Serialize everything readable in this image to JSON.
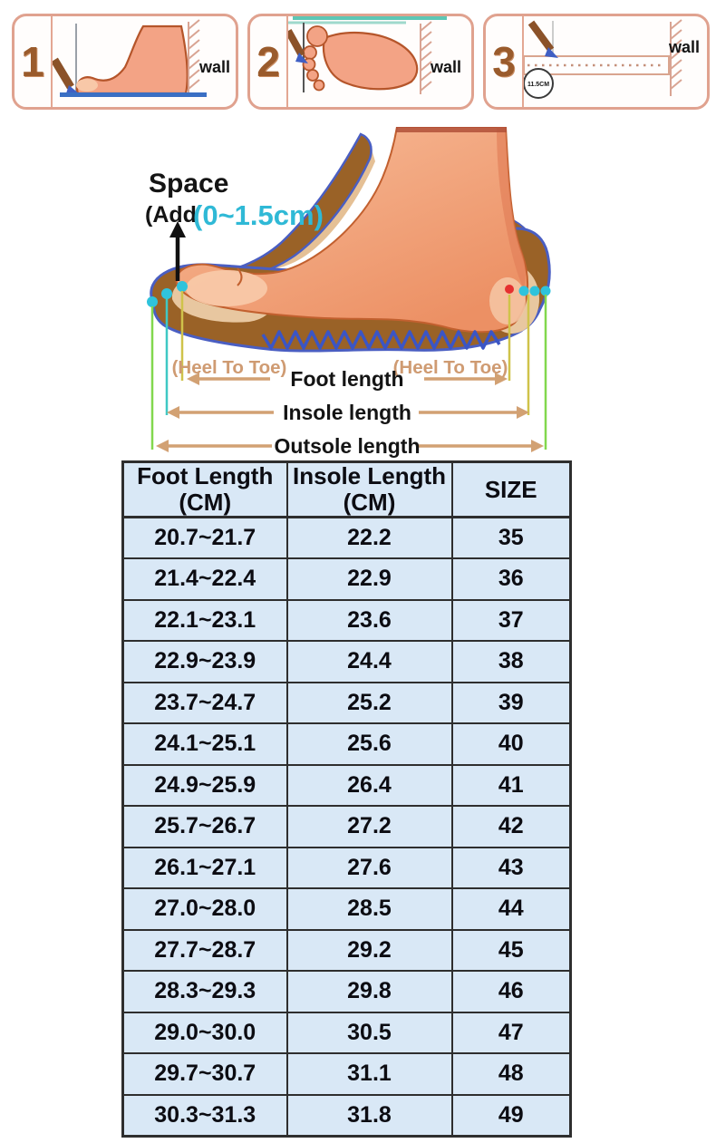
{
  "measure_steps": [
    {
      "number": "1",
      "wall_label": "wall"
    },
    {
      "number": "2",
      "wall_label": "wall"
    },
    {
      "number": "3",
      "wall_label": "wall",
      "ruler_label": "11.5CM"
    }
  ],
  "diagram": {
    "space_label": "Space",
    "add_prefix": "(Add",
    "add_range": "(0~1.5cm)",
    "heel_to_toe_left": "(Heel To Toe)",
    "heel_to_toe_right": "(Heel To Toe)",
    "foot_length_label": "Foot length",
    "insole_length_label": "Insole length",
    "outsole_length_label": "Outsole length"
  },
  "size_table": {
    "columns": [
      {
        "title": "Foot Length",
        "unit": "(CM)"
      },
      {
        "title": "Insole Length",
        "unit": "(CM)"
      },
      {
        "title": "SIZE",
        "unit": ""
      }
    ],
    "rows": [
      {
        "foot_length": "20.7~21.7",
        "insole_length": "22.2",
        "size": "35"
      },
      {
        "foot_length": "21.4~22.4",
        "insole_length": "22.9",
        "size": "36"
      },
      {
        "foot_length": "22.1~23.1",
        "insole_length": "23.6",
        "size": "37"
      },
      {
        "foot_length": "22.9~23.9",
        "insole_length": "24.4",
        "size": "38"
      },
      {
        "foot_length": "23.7~24.7",
        "insole_length": "25.2",
        "size": "39"
      },
      {
        "foot_length": "24.1~25.1",
        "insole_length": "25.6",
        "size": "40"
      },
      {
        "foot_length": "24.9~25.9",
        "insole_length": "26.4",
        "size": "41"
      },
      {
        "foot_length": "25.7~26.7",
        "insole_length": "27.2",
        "size": "42"
      },
      {
        "foot_length": "26.1~27.1",
        "insole_length": "27.6",
        "size": "43"
      },
      {
        "foot_length": "27.0~28.0",
        "insole_length": "28.5",
        "size": "44"
      },
      {
        "foot_length": "27.7~28.7",
        "insole_length": "29.2",
        "size": "45"
      },
      {
        "foot_length": "28.3~29.3",
        "insole_length": "29.8",
        "size": "46"
      },
      {
        "foot_length": "29.0~30.0",
        "insole_length": "30.5",
        "size": "47"
      },
      {
        "foot_length": "29.7~30.7",
        "insole_length": "31.1",
        "size": "48"
      },
      {
        "foot_length": "30.3~31.3",
        "insole_length": "31.8",
        "size": "49"
      }
    ]
  },
  "colors": {
    "table_background": "#d9e8f6",
    "table_border": "#2e2e2e",
    "panel_border": "#e0a28f",
    "step_number_brown": "#9a5b2c",
    "skin": "#f3a385",
    "shoe_brown": "#9a6227",
    "outline_blue": "#4a5ec2",
    "cyan_accent": "#2fc3dc",
    "tan_arrow": "#d2a173",
    "heel_toe_text": "#cf9b72",
    "baseline_blue": "#3a6fc4",
    "teal_line": "#5ec6b4",
    "green_line": "#82d84e",
    "yellow_line": "#cfc34a",
    "red_dot": "#e53030"
  }
}
